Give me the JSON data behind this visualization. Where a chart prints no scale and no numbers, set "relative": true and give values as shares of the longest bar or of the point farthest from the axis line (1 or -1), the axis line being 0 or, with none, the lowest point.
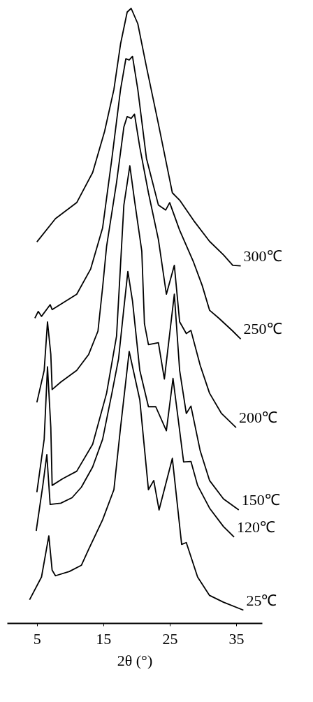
{
  "chart_data": {
    "type": "line",
    "relative": true,
    "xlabel": "2θ (°)",
    "xlim": [
      0.5,
      38.9
    ],
    "xticks": [
      5,
      15,
      25,
      35
    ],
    "grid": false,
    "marker": "none",
    "line_style": "solid",
    "series": [
      {
        "name": "300℃",
        "color": "#000000",
        "x": [
          5.0,
          7.8,
          11.0,
          13.4,
          15.2,
          16.6,
          17.6,
          18.6,
          19.2,
          20.2,
          21.5,
          23.3,
          25.4,
          26.5,
          28.6,
          31.0,
          33.1,
          34.5,
          35.7
        ],
        "values": [
          0.62,
          0.658,
          0.684,
          0.733,
          0.8,
          0.868,
          0.942,
          0.994,
          1.0,
          0.975,
          0.905,
          0.812,
          0.7,
          0.688,
          0.655,
          0.621,
          0.599,
          0.582,
          0.581
        ]
      },
      {
        "name": "250℃",
        "color": "#000000",
        "x": [
          4.7,
          5.2,
          5.7,
          7.0,
          7.3,
          11.0,
          13.1,
          14.9,
          16.3,
          17.6,
          18.4,
          18.9,
          19.4,
          20.2,
          21.5,
          23.3,
          24.4,
          25.0,
          26.5,
          28.6,
          29.9,
          31.0,
          32.4,
          34.5,
          35.7
        ],
        "values": [
          0.496,
          0.507,
          0.499,
          0.518,
          0.51,
          0.535,
          0.576,
          0.643,
          0.756,
          0.868,
          0.918,
          0.916,
          0.922,
          0.868,
          0.756,
          0.68,
          0.672,
          0.684,
          0.639,
          0.587,
          0.549,
          0.509,
          0.496,
          0.475,
          0.462
        ]
      },
      {
        "name": "200℃",
        "color": "#000000",
        "x": [
          5.0,
          6.1,
          6.6,
          7.1,
          7.3,
          8.6,
          11.0,
          12.8,
          14.2,
          14.9,
          15.5,
          17.0,
          18.1,
          18.6,
          19.2,
          19.7,
          20.5,
          21.8,
          23.3,
          24.5,
          25.7,
          26.5,
          27.5,
          28.2,
          29.6,
          31.0,
          32.8,
          35.0
        ],
        "values": [
          0.359,
          0.411,
          0.49,
          0.437,
          0.38,
          0.392,
          0.411,
          0.437,
          0.475,
          0.546,
          0.613,
          0.717,
          0.807,
          0.824,
          0.821,
          0.828,
          0.774,
          0.7,
          0.624,
          0.535,
          0.582,
          0.49,
          0.471,
          0.476,
          0.419,
          0.374,
          0.341,
          0.318
        ]
      },
      {
        "name": "150℃",
        "color": "#000000",
        "x": [
          5.0,
          6.1,
          6.6,
          7.1,
          7.3,
          8.9,
          11.0,
          13.4,
          15.5,
          17.0,
          18.1,
          19.0,
          19.7,
          20.8,
          21.2,
          21.8,
          23.3,
          24.2,
          25.7,
          26.5,
          27.5,
          28.2,
          29.6,
          31.0,
          33.1,
          35.4
        ],
        "values": [
          0.213,
          0.299,
          0.417,
          0.318,
          0.224,
          0.235,
          0.247,
          0.291,
          0.374,
          0.467,
          0.68,
          0.744,
          0.688,
          0.605,
          0.487,
          0.453,
          0.456,
          0.397,
          0.535,
          0.411,
          0.341,
          0.353,
          0.28,
          0.232,
          0.202,
          0.184
        ]
      },
      {
        "name": "120℃",
        "color": "#000000",
        "x": [
          4.9,
          5.9,
          6.5,
          7.0,
          8.6,
          10.3,
          11.7,
          13.4,
          14.9,
          16.3,
          17.3,
          18.1,
          18.7,
          19.4,
          20.5,
          21.8,
          22.9,
          24.5,
          25.5,
          27.1,
          28.2,
          29.2,
          31.0,
          33.1,
          34.7
        ],
        "values": [
          0.15,
          0.224,
          0.274,
          0.193,
          0.195,
          0.204,
          0.221,
          0.254,
          0.299,
          0.374,
          0.43,
          0.512,
          0.572,
          0.524,
          0.411,
          0.352,
          0.352,
          0.313,
          0.398,
          0.262,
          0.263,
          0.224,
          0.187,
          0.157,
          0.14
        ]
      },
      {
        "name": "25℃",
        "color": "#000000",
        "x": [
          3.9,
          5.7,
          6.8,
          7.3,
          7.8,
          9.9,
          11.7,
          12.8,
          14.9,
          16.6,
          17.6,
          18.9,
          20.5,
          21.8,
          22.6,
          23.4,
          25.4,
          26.8,
          27.5,
          29.2,
          31.0,
          33.1,
          36.1
        ],
        "values": [
          0.038,
          0.075,
          0.142,
          0.086,
          0.077,
          0.084,
          0.094,
          0.12,
          0.168,
          0.217,
          0.318,
          0.442,
          0.363,
          0.217,
          0.232,
          0.184,
          0.268,
          0.128,
          0.131,
          0.075,
          0.045,
          0.034,
          0.021
        ]
      }
    ]
  }
}
